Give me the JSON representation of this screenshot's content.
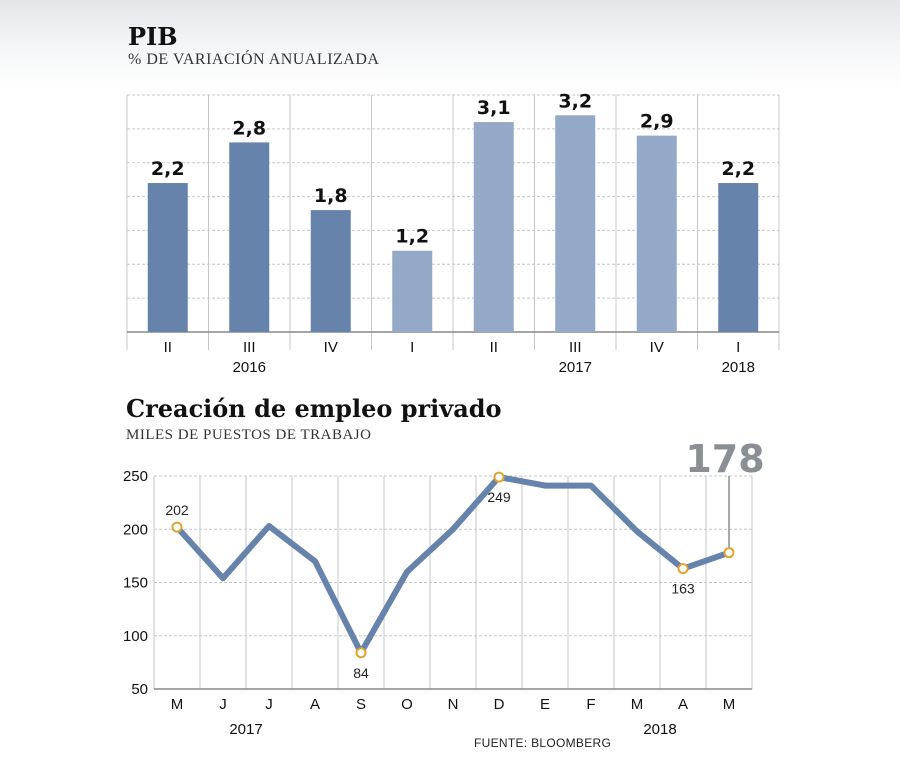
{
  "colors": {
    "bar_dark": "#6683ab",
    "bar_light": "#93a9c7",
    "line": "#6683ab",
    "marker": "#e0a530",
    "grid": "#c4c7cc",
    "highlight_label": "#8a8f96"
  },
  "source": "FUENTE: BLOOMBERG",
  "chart_data": [
    {
      "type": "bar",
      "title": "PIB",
      "subtitle": "% DE VARIACIÓN ANUALIZADA",
      "categories": [
        "II",
        "III",
        "IV",
        "I",
        "II",
        "III",
        "IV",
        "I"
      ],
      "values": [
        2.2,
        2.8,
        1.8,
        1.2,
        3.1,
        3.2,
        2.9,
        2.2
      ],
      "value_labels": [
        "2,2",
        "2,8",
        "1,8",
        "1,2",
        "3,1",
        "3,2",
        "2,9",
        "2,2"
      ],
      "shades": [
        "dark",
        "dark",
        "dark",
        "light",
        "light",
        "light",
        "light",
        "dark"
      ],
      "year_labels": [
        {
          "text": "2016",
          "index": 1
        },
        {
          "text": "2017",
          "index": 5
        },
        {
          "text": "2018",
          "index": 7
        }
      ],
      "ylim": [
        0,
        3.5
      ],
      "grid": true
    },
    {
      "type": "line",
      "title": "Creación de empleo privado",
      "subtitle": "MILES DE PUESTOS DE TRABAJO",
      "categories": [
        "M",
        "J",
        "J",
        "A",
        "S",
        "O",
        "N",
        "D",
        "E",
        "F",
        "M",
        "A",
        "M"
      ],
      "values": [
        202,
        154,
        203,
        170,
        84,
        160,
        200,
        249,
        241,
        241,
        198,
        163,
        178
      ],
      "y_ticks": [
        "250",
        "200",
        "150",
        "100",
        "50"
      ],
      "ylim": [
        50,
        250
      ],
      "annotations": [
        {
          "index": 0,
          "text": "202",
          "pos": "above"
        },
        {
          "index": 4,
          "text": "84",
          "pos": "below"
        },
        {
          "index": 7,
          "text": "249",
          "pos": "below"
        },
        {
          "index": 11,
          "text": "163",
          "pos": "below"
        },
        {
          "index": 12,
          "text": "178",
          "pos": "callout"
        }
      ],
      "year_labels": [
        {
          "text": "2017",
          "index": 1.5
        },
        {
          "text": "2018",
          "index": 10.5
        }
      ],
      "grid": true
    }
  ]
}
